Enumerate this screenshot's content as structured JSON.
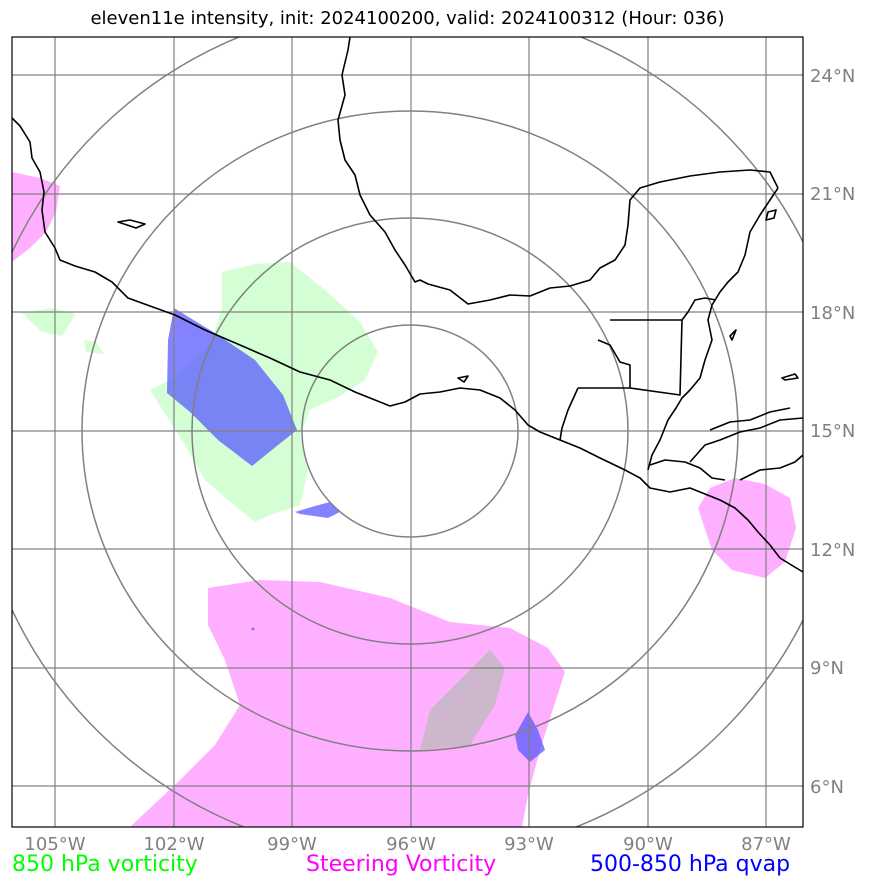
{
  "title": "eleven11e intensity, init: 2024100200, valid: 2024100312 (Hour: 036)",
  "lon_ticks": [
    "105°W",
    "102°W",
    "99°W",
    "96°W",
    "93°W",
    "90°W",
    "87°W"
  ],
  "lat_ticks": [
    "24°N",
    "21°N",
    "18°N",
    "15°N",
    "12°N",
    "9°N",
    "6°N"
  ],
  "legend": {
    "vorticity_850": {
      "label": "850 hPa vorticity",
      "color": "#00ff00"
    },
    "steering": {
      "label": "Steering Vorticity",
      "color": "#ff00ff"
    },
    "qvap": {
      "label": "500-850 hPa qvap",
      "color": "#0000ff"
    }
  },
  "colors": {
    "vort850_fill": "#ccffcc",
    "steering_fill": "#ffa6ff",
    "qvap_fill": "#5a5aff",
    "grid": "#808080",
    "coast": "#000000"
  }
}
